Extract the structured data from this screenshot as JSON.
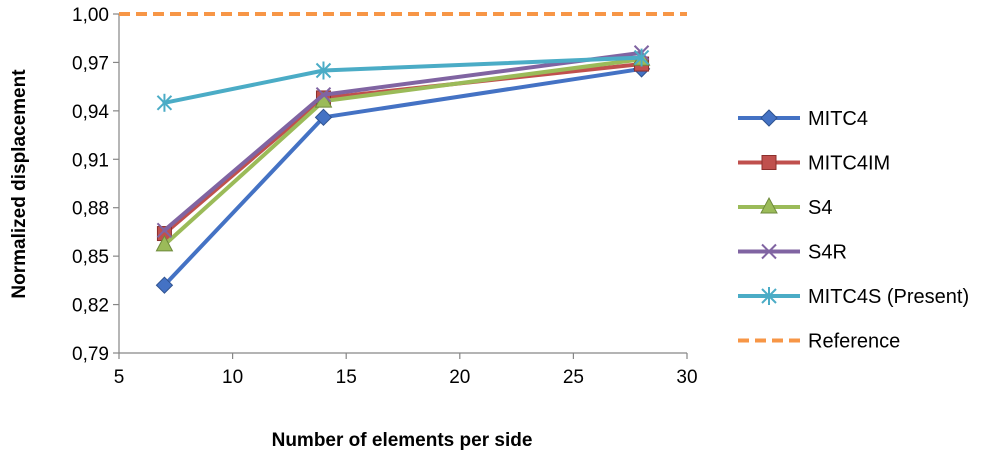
{
  "chart_data": {
    "type": "line",
    "title": "",
    "xlabel": "Number of elements per side",
    "ylabel": "Normalized displacement",
    "xlim": [
      5,
      30
    ],
    "ylim": [
      0.79,
      1.0
    ],
    "x_ticks": [
      5,
      10,
      15,
      20,
      25,
      30
    ],
    "x_tick_labels": [
      "5",
      "10",
      "15",
      "20",
      "25",
      "30"
    ],
    "y_ticks": [
      0.79,
      0.82,
      0.85,
      0.88,
      0.91,
      0.94,
      0.97,
      1.0
    ],
    "y_tick_labels": [
      "0,79",
      "0,82",
      "0,85",
      "0,88",
      "0,91",
      "0,94",
      "0,97",
      "1,00"
    ],
    "grid": false,
    "legend_position": "right",
    "series": [
      {
        "name": "MITC4",
        "color": "#4472C4",
        "marker": "diamond",
        "x": [
          7,
          14,
          28
        ],
        "y": [
          0.832,
          0.936,
          0.966
        ]
      },
      {
        "name": "MITC4IM",
        "color": "#C0504D",
        "marker": "square",
        "x": [
          7,
          14,
          28
        ],
        "y": [
          0.864,
          0.948,
          0.969
        ]
      },
      {
        "name": "S4",
        "color": "#9BBB59",
        "marker": "triangle",
        "x": [
          7,
          14,
          28
        ],
        "y": [
          0.857,
          0.946,
          0.972
        ]
      },
      {
        "name": "S4R",
        "color": "#8064A2",
        "marker": "x",
        "x": [
          7,
          14,
          28
        ],
        "y": [
          0.866,
          0.95,
          0.976
        ]
      },
      {
        "name": "MITC4S (Present)",
        "color": "#4BACC6",
        "marker": "asterisk",
        "x": [
          7,
          14,
          28
        ],
        "y": [
          0.945,
          0.965,
          0.973
        ]
      },
      {
        "name": "Reference",
        "color": "#F79646",
        "marker": "none",
        "dashed": true,
        "x": [
          5,
          30
        ],
        "y": [
          1.0,
          1.0
        ]
      }
    ]
  }
}
